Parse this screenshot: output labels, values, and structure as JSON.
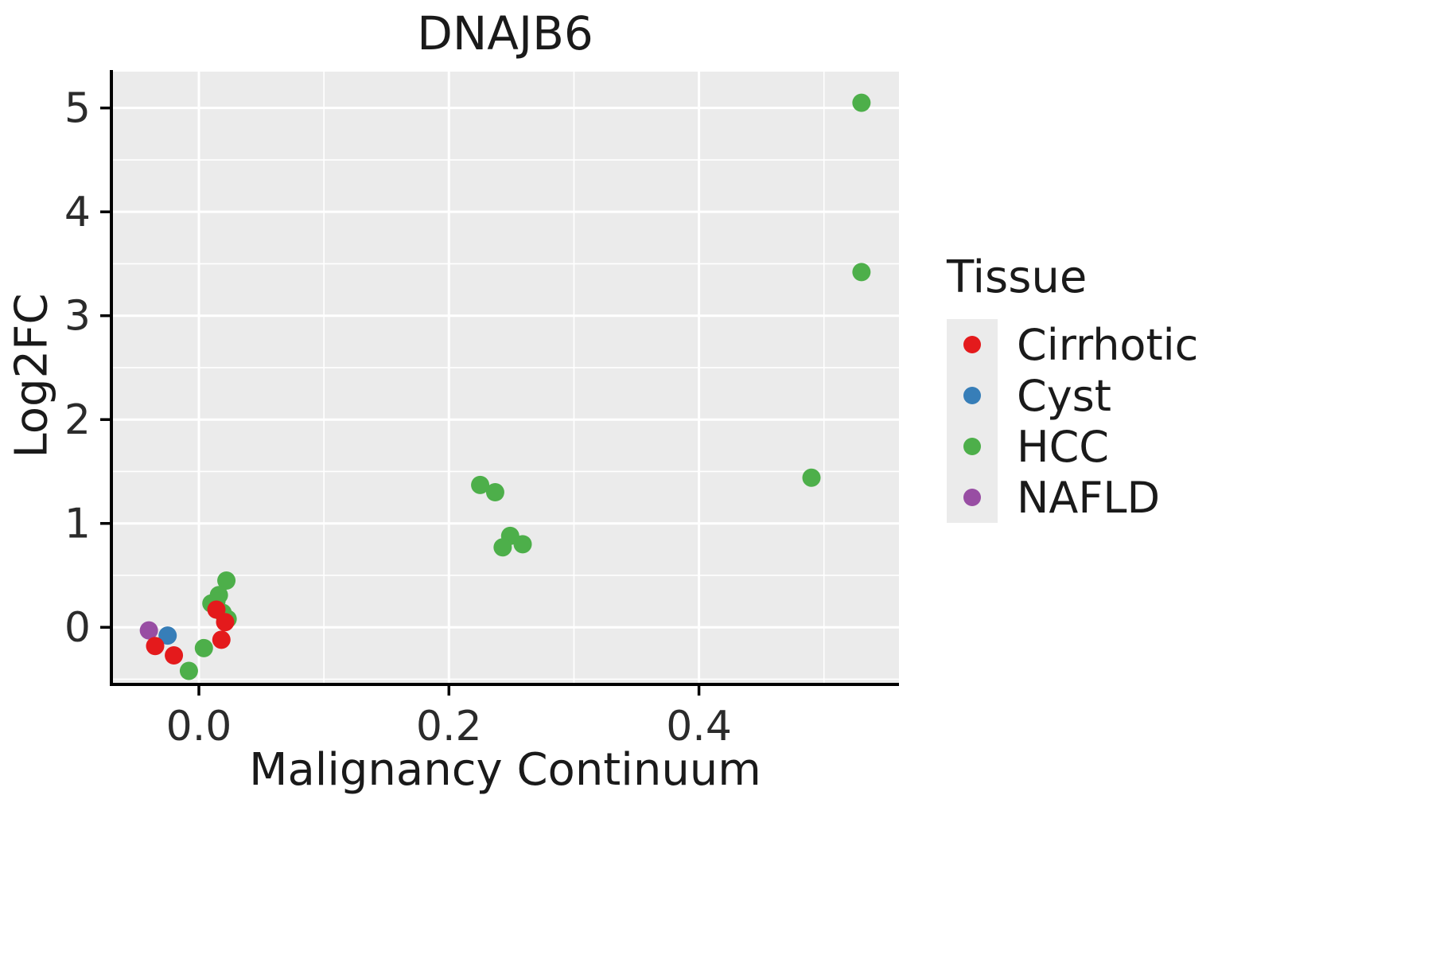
{
  "chart_data": {
    "type": "scatter",
    "title": "DNAJB6",
    "xlabel": "Malignancy Continuum",
    "ylabel": "Log2FC",
    "xlim": [
      -0.07,
      0.56
    ],
    "ylim": [
      -0.55,
      5.35
    ],
    "xticks": [
      0.0,
      0.2,
      0.4
    ],
    "xtick_labels": [
      "0.0",
      "0.2",
      "0.4"
    ],
    "yticks": [
      0,
      1,
      2,
      3,
      4,
      5
    ],
    "ytick_labels": [
      "0",
      "1",
      "2",
      "3",
      "4",
      "5"
    ],
    "xminor": [
      0.1,
      0.3,
      0.5
    ],
    "yminor": [
      -0.5,
      0.5,
      1.5,
      2.5,
      3.5,
      4.5
    ],
    "grid": true,
    "legend_position": "right",
    "panel_background": "#EBEBEB",
    "grid_color": "#FFFFFF",
    "axis_color": "#000000",
    "point_radius": 11.5,
    "legend": {
      "title": "Tissue"
    },
    "series": [
      {
        "name": "Cirrhotic",
        "color": "#E41A1C",
        "points": [
          [
            -0.035,
            -0.18
          ],
          [
            -0.02,
            -0.27
          ],
          [
            0.014,
            0.17
          ],
          [
            0.021,
            0.05
          ],
          [
            0.018,
            -0.12
          ]
        ]
      },
      {
        "name": "Cyst",
        "color": "#377EB8",
        "points": [
          [
            -0.025,
            -0.08
          ]
        ]
      },
      {
        "name": "HCC",
        "color": "#4DAF4A",
        "points": [
          [
            0.53,
            5.05
          ],
          [
            0.53,
            3.42
          ],
          [
            0.49,
            1.44
          ],
          [
            0.225,
            1.37
          ],
          [
            0.237,
            1.3
          ],
          [
            0.249,
            0.88
          ],
          [
            0.243,
            0.77
          ],
          [
            0.259,
            0.8
          ],
          [
            0.022,
            0.45
          ],
          [
            0.016,
            0.31
          ],
          [
            0.014,
            0.25
          ],
          [
            0.01,
            0.23
          ],
          [
            0.019,
            0.14
          ],
          [
            0.023,
            0.08
          ],
          [
            0.004,
            -0.2
          ],
          [
            -0.008,
            -0.42
          ]
        ]
      },
      {
        "name": "NAFLD",
        "color": "#984EA3",
        "points": [
          [
            -0.04,
            -0.03
          ]
        ]
      }
    ]
  }
}
